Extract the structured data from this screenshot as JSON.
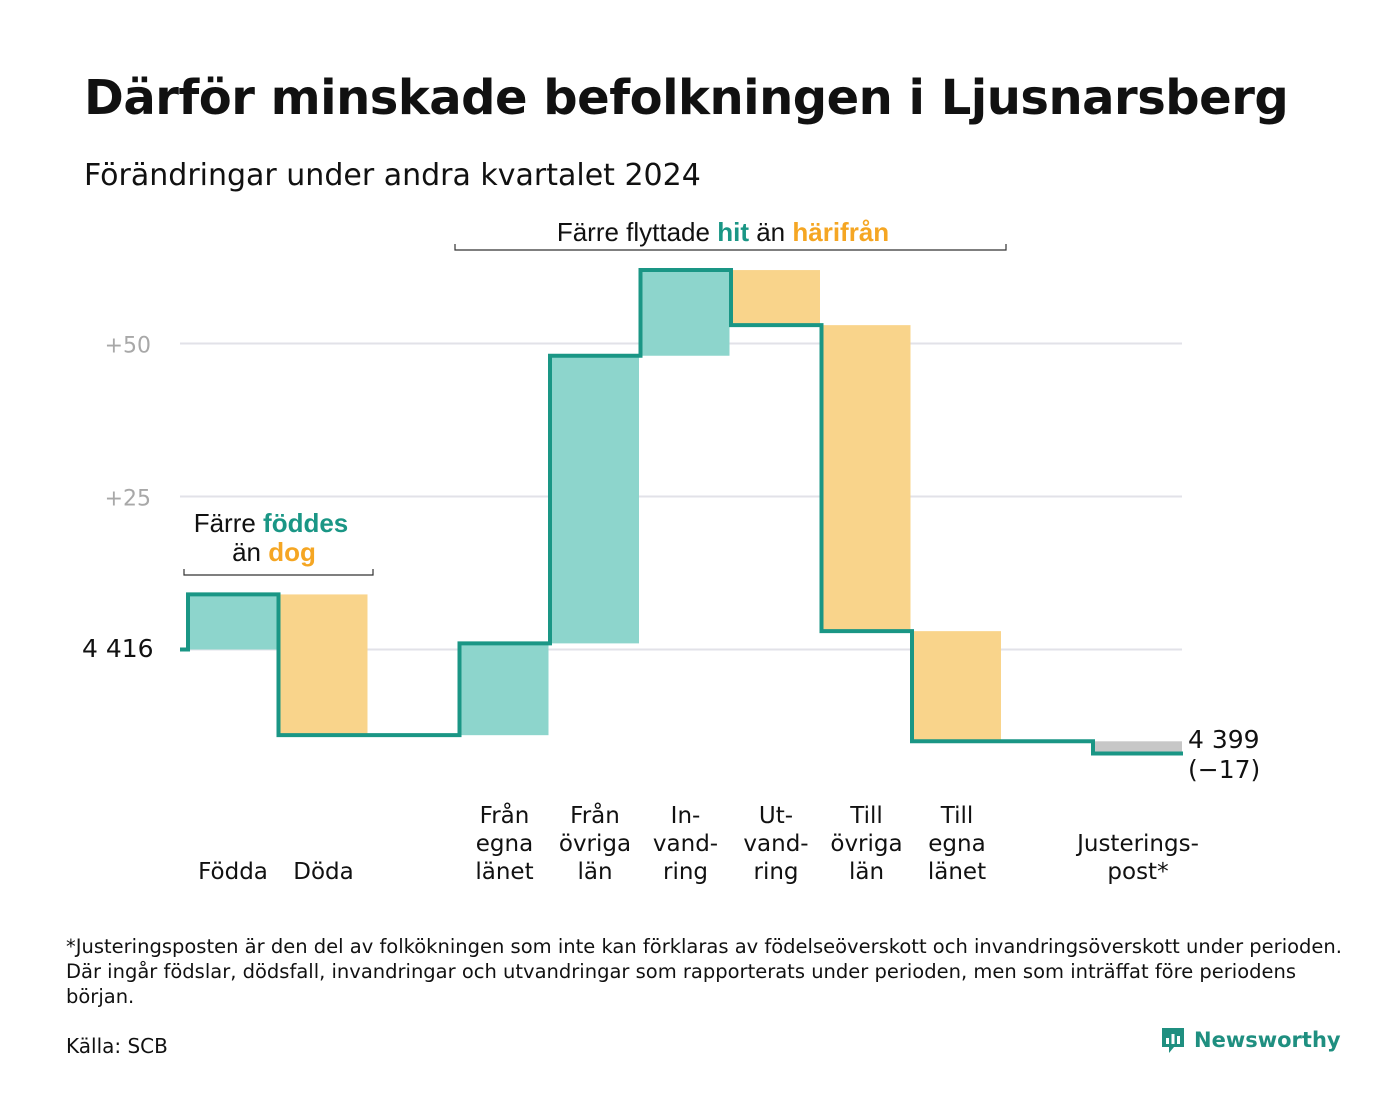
{
  "title": "Därför minskade befolkningen i Ljusnarsberg",
  "subtitle": "Förändringar under andra kvartalet 2024",
  "colors": {
    "teal": "#1a9685",
    "teal_fill": "#8dd5cc",
    "orange": "#f5a623",
    "orange_fill": "#f9d48b",
    "gray_fill": "#c7c7c7",
    "grid": "#e2e2e8"
  },
  "annotations": {
    "births": {
      "line1_prefix": "Färre ",
      "line1_highlight": "föddes",
      "line2_prefix": "än ",
      "line2_highlight": "dog"
    },
    "migration": {
      "prefix": "Färre flyttade ",
      "highlight1": "hit",
      "middle": " än ",
      "highlight2": "härifrån"
    }
  },
  "chart_data": {
    "type": "waterfall",
    "start_value": 4416,
    "start_label": "4 416",
    "end_value": 4399,
    "end_label": "4 399",
    "change_label": "(−17)",
    "y_ticks": [
      {
        "value": 50,
        "label": "+50"
      },
      {
        "value": 25,
        "label": "+25"
      },
      {
        "value": 0,
        "label": ""
      }
    ],
    "ylim": [
      -17,
      62
    ],
    "steps": [
      {
        "label": [
          "Födda"
        ],
        "delta": 9,
        "kind": "in",
        "slot": 0
      },
      {
        "label": [
          "Döda"
        ],
        "delta": -23,
        "kind": "out",
        "slot": 1
      },
      {
        "label": [
          "Från",
          "egna",
          "länet"
        ],
        "delta": 15,
        "kind": "in",
        "slot": 3
      },
      {
        "label": [
          "Från",
          "övriga",
          "län"
        ],
        "delta": 47,
        "kind": "in",
        "slot": 4
      },
      {
        "label": [
          "In-",
          "vand-",
          "ring"
        ],
        "delta": 14,
        "kind": "in",
        "slot": 5
      },
      {
        "label": [
          "Ut-",
          "vand-",
          "ring"
        ],
        "delta": -9,
        "kind": "out",
        "slot": 6
      },
      {
        "label": [
          "Till",
          "övriga",
          "län"
        ],
        "delta": -50,
        "kind": "out",
        "slot": 7
      },
      {
        "label": [
          "Till",
          "egna",
          "länet"
        ],
        "delta": -18,
        "kind": "out",
        "slot": 8
      },
      {
        "label": [
          "Justerings-",
          "post*"
        ],
        "delta": -2,
        "kind": "adjust",
        "slot": 10
      }
    ]
  },
  "footnote": "*Justeringsposten är den del av folkökningen som inte kan förklaras av födelseöverskott och invandringsöverskott under perioden. Där ingår födslar, dödsfall, invandringar och utvandringar som rapporterats under perioden, men som inträffat före periodens början.",
  "source": "Källa: SCB",
  "brand": {
    "name": "Newsworthy",
    "icon": "newsworthy-logo-icon"
  }
}
